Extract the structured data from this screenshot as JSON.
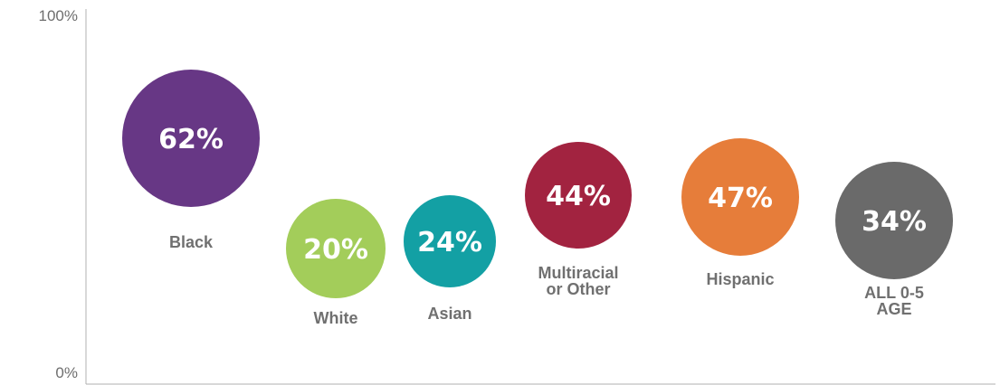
{
  "chart_data": {
    "type": "scatter",
    "title": "",
    "xlabel": "",
    "ylabel": "",
    "ylim": [
      0,
      100
    ],
    "y_ticks": [
      "100%",
      "0%"
    ],
    "grid": false,
    "points": [
      {
        "category": "Black",
        "value": 62,
        "label": "62%",
        "color": "#673785"
      },
      {
        "category": "White",
        "value": 20,
        "label": "20%",
        "color": "#a3cd5a"
      },
      {
        "category": "Asian",
        "value": 24,
        "label": "24%",
        "color": "#13a0a4"
      },
      {
        "category": "Multiracial or Other",
        "label_lines": [
          "Multiracial",
          "or Other"
        ],
        "value": 44,
        "label": "44%",
        "color": "#a22340"
      },
      {
        "category": "Hispanic",
        "value": 47,
        "label": "47%",
        "color": "#e67d3a"
      },
      {
        "category": "ALL 0-5 AGE",
        "label_lines": [
          "ALL 0-5",
          "AGE"
        ],
        "value": 34,
        "label": "34%",
        "color": "#6a6a6a"
      }
    ]
  }
}
